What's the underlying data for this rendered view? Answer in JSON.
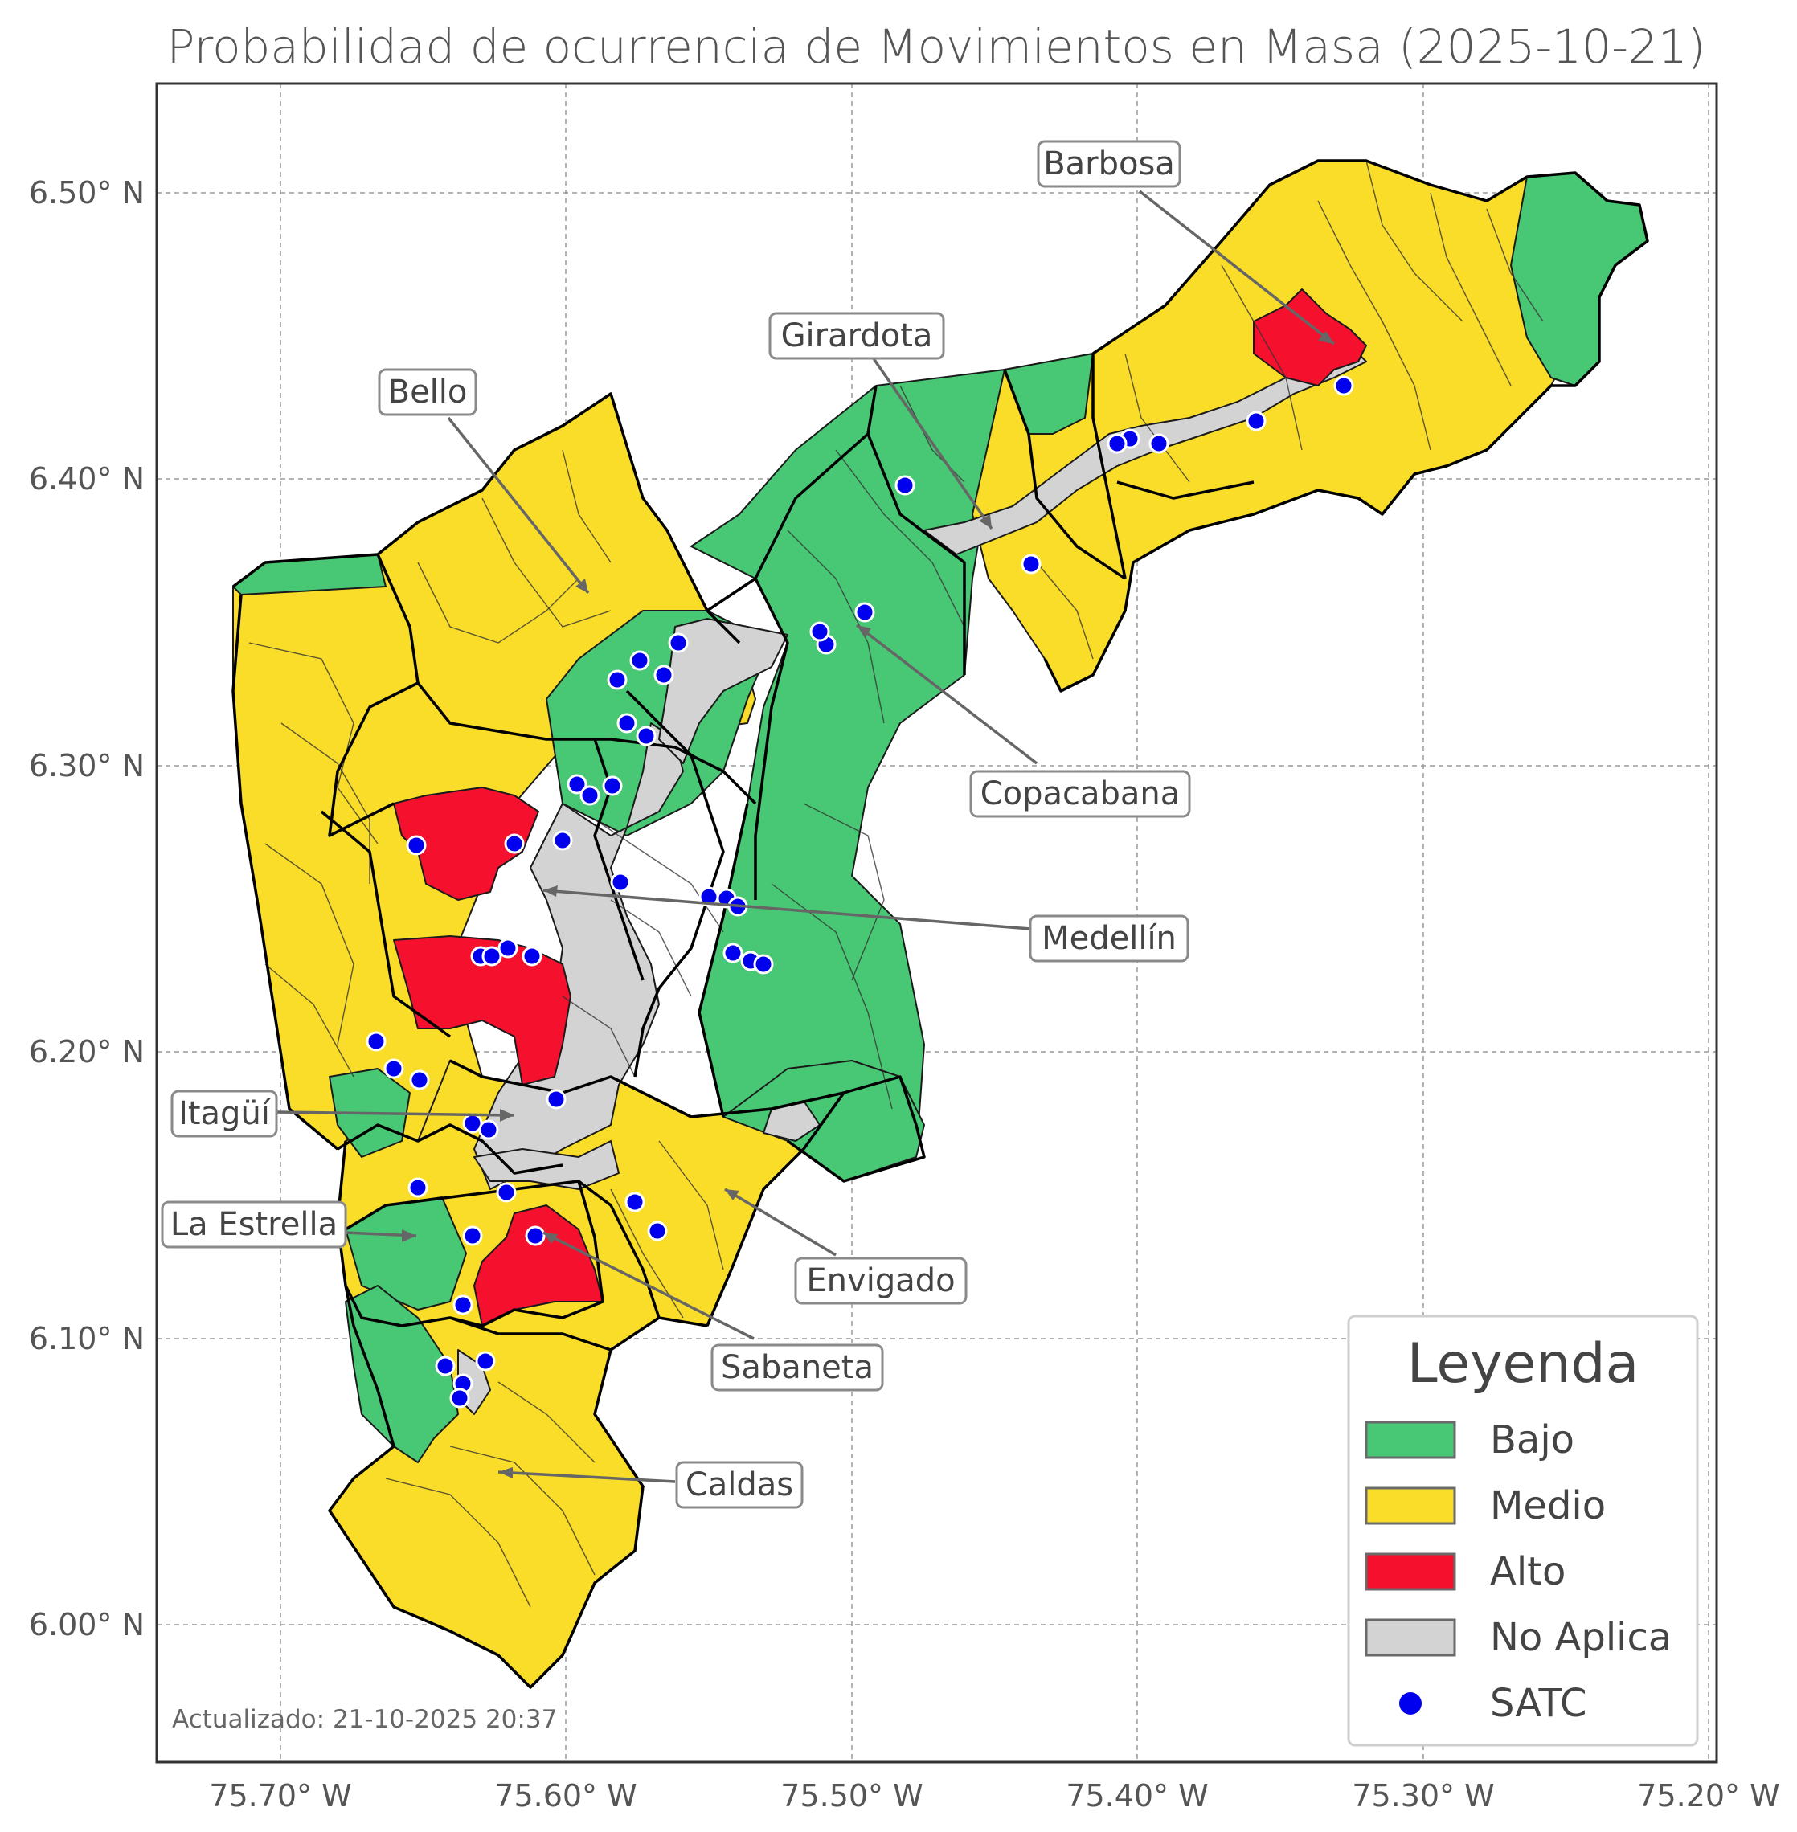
{
  "title": "Probabilidad de ocurrencia de Movimientos en Masa (2025-10-21)",
  "axes": {
    "x_ticks": [
      "75.70° W",
      "75.60° W",
      "75.50° W",
      "75.40° W",
      "75.30° W",
      "75.20° W"
    ],
    "y_ticks": [
      "6.50° N",
      "6.40° N",
      "6.30° N",
      "6.20° N",
      "6.10° N",
      "6.00° N"
    ],
    "grid": true
  },
  "colors": {
    "bajo": "#48c774",
    "medio": "#f9dd28",
    "alto": "#f5102e",
    "no_aplica": "#d3d3d3",
    "satc": "#0000ee"
  },
  "municipalities": [
    {
      "name": "Barbosa"
    },
    {
      "name": "Girardota"
    },
    {
      "name": "Bello"
    },
    {
      "name": "Copacabana"
    },
    {
      "name": "Medellín"
    },
    {
      "name": "Itagüí"
    },
    {
      "name": "La Estrella"
    },
    {
      "name": "Envigado"
    },
    {
      "name": "Sabaneta"
    },
    {
      "name": "Caldas"
    }
  ],
  "legend": {
    "title": "Leyenda",
    "items": [
      {
        "label": "Bajo",
        "color": "#48c774",
        "kind": "patch"
      },
      {
        "label": "Medio",
        "color": "#f9dd28",
        "kind": "patch"
      },
      {
        "label": "Alto",
        "color": "#f5102e",
        "kind": "patch"
      },
      {
        "label": "No Aplica",
        "color": "#d3d3d3",
        "kind": "patch"
      },
      {
        "label": "SATC",
        "color": "#0000ee",
        "kind": "marker"
      }
    ]
  },
  "footer": "Actualizado: 21-10-2025 20:37"
}
